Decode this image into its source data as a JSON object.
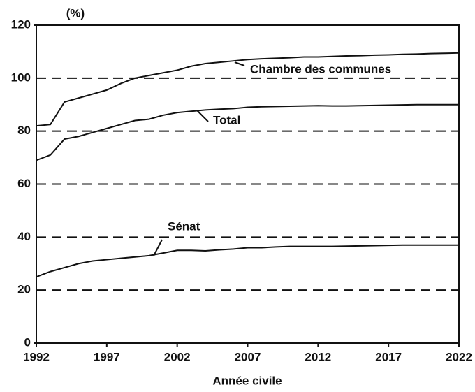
{
  "chart_data": {
    "type": "line",
    "y_unit_label": "(%)",
    "x_label": "Année civile",
    "x": [
      1992,
      1993,
      1994,
      1995,
      1996,
      1997,
      1998,
      1999,
      2000,
      2001,
      2002,
      2003,
      2004,
      2005,
      2006,
      2007,
      2008,
      2009,
      2010,
      2011,
      2012,
      2013,
      2014,
      2015,
      2016,
      2017,
      2018,
      2019,
      2020,
      2021,
      2022
    ],
    "series": [
      {
        "name": "Chambre des communes",
        "color": "#111111",
        "values": [
          82,
          82.5,
          91,
          92.5,
          94,
          95.5,
          98,
          100,
          101,
          102,
          103,
          104.5,
          105.5,
          106,
          106.5,
          107,
          107.3,
          107.5,
          107.7,
          108,
          108,
          108.2,
          108.4,
          108.5,
          108.7,
          108.8,
          109,
          109.1,
          109.3,
          109.4,
          109.5
        ]
      },
      {
        "name": "Total",
        "color": "#111111",
        "values": [
          69,
          71,
          77,
          78,
          79.5,
          81,
          82.5,
          84,
          84.5,
          86,
          87,
          87.5,
          88,
          88.3,
          88.5,
          89,
          89.2,
          89.3,
          89.4,
          89.5,
          89.6,
          89.5,
          89.5,
          89.6,
          89.7,
          89.8,
          89.9,
          90,
          90,
          90,
          90
        ]
      },
      {
        "name": "Sénat",
        "color": "#111111",
        "values": [
          25,
          27,
          28.5,
          30,
          31,
          31.5,
          32,
          32.5,
          33,
          34,
          35,
          35,
          34.8,
          35.2,
          35.5,
          36,
          36,
          36.3,
          36.5,
          36.5,
          36.5,
          36.5,
          36.6,
          36.7,
          36.8,
          36.9,
          37,
          37,
          37,
          37,
          37
        ]
      }
    ],
    "xlim": [
      1992,
      2022
    ],
    "xticks": [
      1992,
      1997,
      2002,
      2007,
      2012,
      2017,
      2022
    ],
    "ylim": [
      0,
      120
    ],
    "yticks": [
      0,
      20,
      40,
      60,
      80,
      100,
      120
    ],
    "grid": true
  }
}
